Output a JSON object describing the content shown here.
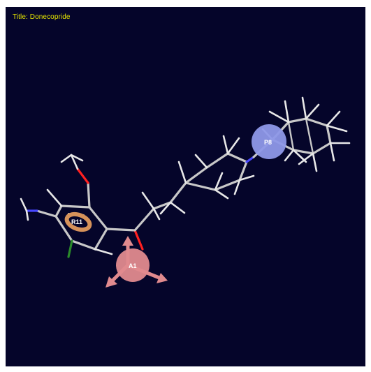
{
  "viewer": {
    "title": "Title: Donecopride"
  },
  "features": [
    {
      "label": "A1",
      "type": "hbond-acceptor",
      "color": "#e08a8e"
    },
    {
      "label": "P8",
      "type": "positive-ionizable",
      "color": "#8e98e8"
    },
    {
      "label": "R11",
      "type": "aromatic-ring",
      "color": "#d6925a"
    }
  ],
  "colors": {
    "background": "#05052a",
    "carbon": "#c8c8c8",
    "oxygen": "#ff2020",
    "nitrogen": "#4848ff",
    "chlorine": "#2a8a2a",
    "title_text": "#e6e600"
  }
}
